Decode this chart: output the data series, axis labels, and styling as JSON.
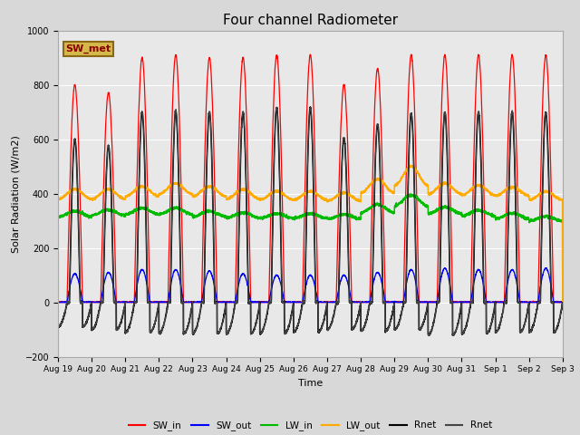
{
  "title": "Four channel Radiometer",
  "xlabel": "Time",
  "ylabel": "Solar Radiation (W/m2)",
  "ylim": [
    -200,
    1000
  ],
  "fig_bg_color": "#d8d8d8",
  "plot_bg_color": "#e8e8e8",
  "annotation_text": "SW_met",
  "annotation_bg": "#d4b84a",
  "annotation_border": "#8B6914",
  "x_tick_labels": [
    "Aug 19",
    "Aug 20",
    "Aug 21",
    "Aug 22",
    "Aug 23",
    "Aug 24",
    "Aug 25",
    "Aug 26",
    "Aug 27",
    "Aug 28",
    "Aug 29",
    "Aug 30",
    "Aug 31",
    "Sep 1",
    "Sep 2",
    "Sep 3"
  ],
  "legend_labels": [
    "SW_in",
    "SW_out",
    "LW_in",
    "LW_out",
    "Rnet",
    "Rnet"
  ],
  "legend_colors": [
    "#ff0000",
    "#0000ff",
    "#00bb00",
    "#ffaa00",
    "#000000",
    "#444444"
  ],
  "num_days": 15,
  "points_per_day": 288,
  "sw_in_peaks": [
    800,
    770,
    900,
    910,
    900,
    900,
    910,
    910,
    800,
    860,
    910,
    910,
    910,
    910,
    910
  ],
  "sw_out_peaks": [
    105,
    110,
    120,
    120,
    115,
    105,
    100,
    100,
    100,
    110,
    120,
    125,
    120,
    120,
    125
  ],
  "lw_in_base": [
    325,
    330,
    335,
    335,
    325,
    320,
    318,
    318,
    315,
    345,
    375,
    338,
    328,
    318,
    308
  ],
  "lw_in_amp": [
    10,
    10,
    12,
    12,
    10,
    10,
    8,
    8,
    8,
    15,
    20,
    12,
    10,
    10,
    8
  ],
  "lw_out_base": [
    398,
    398,
    408,
    418,
    408,
    398,
    393,
    393,
    388,
    428,
    465,
    418,
    412,
    408,
    392
  ],
  "lw_out_amp": [
    18,
    18,
    18,
    20,
    18,
    18,
    16,
    16,
    15,
    25,
    35,
    20,
    18,
    16,
    15
  ],
  "rnet_peaks": [
    600,
    575,
    700,
    705,
    700,
    700,
    715,
    715,
    605,
    655,
    695,
    700,
    700,
    700,
    700
  ],
  "rnet_night_min": [
    -90,
    -100,
    -110,
    -115,
    -115,
    -115,
    -115,
    -110,
    -100,
    -105,
    -100,
    -120,
    -115,
    -110,
    -110
  ],
  "sunrise": 0.27,
  "sunset": 0.73
}
